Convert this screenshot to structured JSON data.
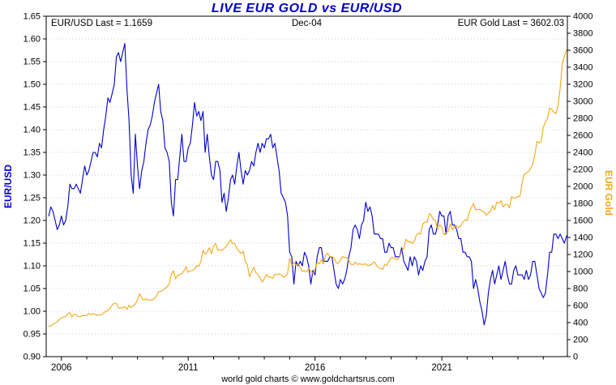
{
  "title": "LIVE EUR GOLD vs EUR/USD",
  "header": {
    "left_label": "EUR/USD Last = 1.1659",
    "center_label": "Dec-04",
    "right_label": "EUR Gold Last = 3602.03"
  },
  "footer": "world gold charts © www.goldchartsrus.com",
  "axes": {
    "left_title": "EUR/USD",
    "right_title": "EUR Gold"
  },
  "colors": {
    "eurusd": "#0000cd",
    "eur_gold": "#f2a71b",
    "title": "#0000cd",
    "grid": "#bfbfbf",
    "axis": "#000000"
  },
  "chart_data": {
    "type": "line",
    "title": "LIVE EUR GOLD vs EUR/USD",
    "as_of": "Dec-04",
    "last_values": {
      "eurusd": 1.1659,
      "eur_gold": 3602.03
    },
    "x_start": 2005.5,
    "x_step": 0.0833333,
    "x_range": [
      2005.4,
      2025.95
    ],
    "x_tick_years": [
      2006,
      2011,
      2016,
      2021
    ],
    "left_axis": {
      "label": "EUR/USD",
      "range": [
        0.9,
        1.65
      ],
      "tick_step": 0.05
    },
    "right_axis": {
      "label": "EUR Gold",
      "range": [
        0,
        4000
      ],
      "tick_step": 200
    },
    "grid": "horizontal-dotted",
    "legend": "none",
    "series": [
      {
        "name": "EUR/USD",
        "axis": "left",
        "color": "#0000cd",
        "values": [
          1.21,
          1.23,
          1.22,
          1.2,
          1.18,
          1.19,
          1.21,
          1.19,
          1.2,
          1.23,
          1.28,
          1.27,
          1.27,
          1.28,
          1.27,
          1.26,
          1.29,
          1.32,
          1.3,
          1.31,
          1.33,
          1.35,
          1.35,
          1.34,
          1.37,
          1.36,
          1.4,
          1.43,
          1.47,
          1.46,
          1.48,
          1.5,
          1.56,
          1.57,
          1.55,
          1.57,
          1.59,
          1.49,
          1.42,
          1.3,
          1.26,
          1.39,
          1.32,
          1.27,
          1.31,
          1.33,
          1.37,
          1.4,
          1.41,
          1.43,
          1.46,
          1.48,
          1.5,
          1.44,
          1.42,
          1.36,
          1.35,
          1.33,
          1.24,
          1.21,
          1.29,
          1.29,
          1.34,
          1.39,
          1.33,
          1.33,
          1.36,
          1.37,
          1.41,
          1.46,
          1.43,
          1.44,
          1.42,
          1.44,
          1.35,
          1.39,
          1.34,
          1.3,
          1.29,
          1.33,
          1.33,
          1.31,
          1.24,
          1.26,
          1.22,
          1.25,
          1.29,
          1.3,
          1.28,
          1.32,
          1.35,
          1.31,
          1.28,
          1.31,
          1.3,
          1.31,
          1.33,
          1.32,
          1.35,
          1.37,
          1.35,
          1.37,
          1.36,
          1.38,
          1.38,
          1.39,
          1.36,
          1.37,
          1.34,
          1.31,
          1.26,
          1.25,
          1.24,
          1.21,
          1.13,
          1.12,
          1.06,
          1.11,
          1.1,
          1.11,
          1.1,
          1.13,
          1.12,
          1.1,
          1.06,
          1.09,
          1.08,
          1.12,
          1.14,
          1.14,
          1.11,
          1.11,
          1.11,
          1.12,
          1.12,
          1.09,
          1.06,
          1.05,
          1.07,
          1.06,
          1.07,
          1.09,
          1.12,
          1.14,
          1.18,
          1.19,
          1.18,
          1.16,
          1.19,
          1.2,
          1.24,
          1.22,
          1.23,
          1.21,
          1.17,
          1.17,
          1.17,
          1.16,
          1.16,
          1.13,
          1.13,
          1.15,
          1.14,
          1.14,
          1.12,
          1.12,
          1.12,
          1.14,
          1.11,
          1.1,
          1.09,
          1.12,
          1.1,
          1.12,
          1.11,
          1.08,
          1.1,
          1.09,
          1.11,
          1.12,
          1.18,
          1.19,
          1.17,
          1.17,
          1.19,
          1.22,
          1.21,
          1.21,
          1.17,
          1.21,
          1.22,
          1.19,
          1.19,
          1.18,
          1.16,
          1.16,
          1.13,
          1.13,
          1.12,
          1.12,
          1.11,
          1.05,
          1.07,
          1.05,
          1.02,
          1.0,
          0.97,
          0.99,
          1.04,
          1.07,
          1.09,
          1.06,
          1.08,
          1.1,
          1.07,
          1.09,
          1.11,
          1.08,
          1.06,
          1.06,
          1.09,
          1.1,
          1.08,
          1.08,
          1.08,
          1.07,
          1.09,
          1.07,
          1.08,
          1.11,
          1.11,
          1.08,
          1.05,
          1.04,
          1.03,
          1.04,
          1.08,
          1.13,
          1.13,
          1.17,
          1.17,
          1.16,
          1.17,
          1.16,
          1.15,
          1.166
        ]
      },
      {
        "name": "EUR Gold",
        "axis": "right",
        "color": "#f2a71b",
        "values": [
          355,
          360,
          380,
          395,
          410,
          435,
          455,
          465,
          470,
          505,
          515,
          465,
          500,
          490,
          470,
          470,
          485,
          480,
          485,
          510,
          490,
          505,
          495,
          485,
          490,
          490,
          515,
          530,
          545,
          565,
          605,
          630,
          625,
          570,
          575,
          570,
          590,
          555,
          605,
          575,
          595,
          620,
          665,
          740,
          690,
          665,
          680,
          665,
          665,
          665,
          685,
          710,
          765,
          765,
          780,
          800,
          820,
          855,
          965,
          1010,
          915,
          955,
          965,
          975,
          1010,
          1055,
          990,
          1010,
          1010,
          1030,
          1070,
          1060,
          1120,
          1250,
          1205,
          1230,
          1280,
          1210,
          1300,
          1330,
          1250,
          1255,
          1245,
          1270,
          1300,
          1330,
          1375,
          1330,
          1330,
          1270,
          1240,
          1210,
          1240,
          1120,
          1080,
          940,
          995,
          1050,
          985,
          965,
          925,
          875,
          915,
          965,
          935,
          935,
          920,
          970,
          960,
          975,
          960,
          935,
          945,
          975,
          1155,
          1075,
          1105,
          1075,
          1085,
          1055,
          1000,
          1010,
          995,
          1035,
          1005,
          975,
          1025,
          1110,
          1090,
          1140,
          1090,
          1190,
          1215,
          1175,
          1175,
          1160,
          1105,
          1095,
          1135,
          1175,
          1165,
          1165,
          1130,
          1085,
          1080,
          1110,
          1085,
          1090,
          1085,
          1085,
          1090,
          1070,
          1075,
          1090,
          1115,
          1075,
          1050,
          1035,
          1025,
          1080,
          1075,
          1120,
          1160,
          1165,
          1150,
          1140,
          1170,
          1240,
          1270,
          1380,
          1350,
          1355,
          1330,
          1355,
          1430,
          1450,
          1440,
          1560,
          1580,
          1580,
          1680,
          1660,
          1610,
          1600,
          1490,
          1550,
          1525,
          1430,
          1455,
          1470,
          1560,
          1490,
          1530,
          1535,
          1515,
          1540,
          1585,
          1610,
          1600,
          1700,
          1750,
          1800,
          1725,
          1730,
          1730,
          1710,
          1700,
          1660,
          1690,
          1705,
          1775,
          1725,
          1815,
          1805,
          1830,
          1760,
          1785,
          1790,
          1750,
          1880,
          1865,
          1865,
          1880,
          1885,
          2045,
          2145,
          2155,
          2175,
          2210,
          2260,
          2370,
          2530,
          2510,
          2525,
          2695,
          2755,
          2795,
          2920,
          2905,
          2870,
          2855,
          2950,
          3150,
          3440,
          3530,
          3602
        ]
      }
    ]
  }
}
